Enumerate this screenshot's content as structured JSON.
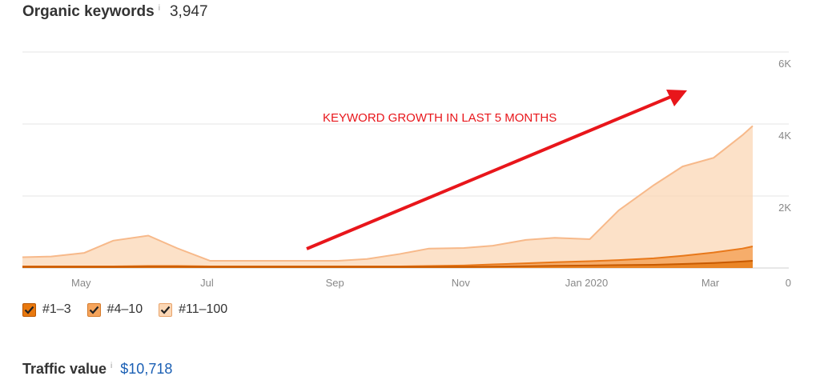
{
  "header": {
    "title": "Organic keywords",
    "info": "i",
    "value": "3,947"
  },
  "traffic": {
    "title": "Traffic value",
    "info": "i",
    "value": "$10,718"
  },
  "annotation": {
    "text": "KEYWORD GROWTH IN LAST 5 MONTHS",
    "color": "#e8161b"
  },
  "legend": [
    {
      "label": "#1–3",
      "color": "#e8780e",
      "checked": true
    },
    {
      "label": "#4–10",
      "color": "#f5a45b",
      "checked": true
    },
    {
      "label": "#11–100",
      "color": "#fbd7b5",
      "checked": true
    }
  ],
  "chart_data": {
    "type": "area",
    "stacked": true,
    "x_ticks": [
      "May",
      "Jul",
      "Sep",
      "Nov",
      "Jan 2020",
      "Mar"
    ],
    "y_ticks": [
      "0",
      "2K",
      "4K",
      "6K"
    ],
    "ylim": [
      0,
      6000
    ],
    "grid": true,
    "x": [
      "2019-04-01",
      "2019-04-15",
      "2019-05-01",
      "2019-05-15",
      "2019-06-01",
      "2019-06-15",
      "2019-07-01",
      "2019-07-15",
      "2019-08-01",
      "2019-08-15",
      "2019-09-01",
      "2019-09-15",
      "2019-10-01",
      "2019-10-15",
      "2019-11-01",
      "2019-11-15",
      "2019-12-01",
      "2019-12-15",
      "2020-01-01",
      "2020-01-15",
      "2020-02-01",
      "2020-02-15",
      "2020-03-01",
      "2020-03-15",
      "2020-03-20"
    ],
    "series": [
      {
        "name": "#1–3",
        "color": "#e8780e",
        "values": [
          30,
          30,
          30,
          30,
          35,
          35,
          30,
          30,
          30,
          30,
          30,
          30,
          30,
          30,
          30,
          40,
          50,
          60,
          70,
          80,
          90,
          110,
          140,
          180,
          200
        ]
      },
      {
        "name": "#4–10",
        "color": "#f5a45b",
        "values": [
          15,
          15,
          15,
          15,
          20,
          20,
          15,
          15,
          15,
          15,
          15,
          15,
          15,
          25,
          40,
          60,
          80,
          100,
          120,
          140,
          180,
          230,
          290,
          360,
          400
        ]
      },
      {
        "name": "#11–100",
        "color": "#fbd7b5",
        "values": [
          255,
          275,
          375,
          715,
          845,
          495,
          155,
          155,
          155,
          155,
          155,
          205,
          345,
          485,
          485,
          520,
          650,
          680,
          610,
          1380,
          2030,
          2480,
          2630,
          3150,
          3347
        ]
      }
    ]
  }
}
